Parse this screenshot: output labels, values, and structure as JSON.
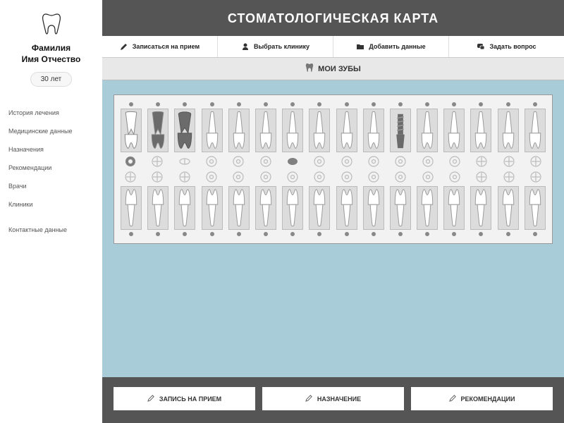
{
  "page_title": "СТОМАТОЛОГИЧЕСКАЯ КАРТА",
  "patient": {
    "name_line1": "Фамилия",
    "name_line2": "Имя Отчество",
    "age": "30 лет"
  },
  "sidebar": {
    "items": [
      {
        "label": "История лечения"
      },
      {
        "label": "Медицинские данные"
      },
      {
        "label": "Назначения"
      },
      {
        "label": "Рекомендации"
      },
      {
        "label": "Врачи"
      },
      {
        "label": "Клиники"
      }
    ],
    "contact_label": "Контактные данные"
  },
  "toolbar": {
    "appointment": "Записаться на прием",
    "clinic": "Выбрать клинику",
    "add_data": "Добавить данные",
    "ask": "Задать вопрос"
  },
  "section_title": "МОИ ЗУБЫ",
  "bottom_buttons": {
    "appointment": "ЗАПИСЬ НА ПРИЕМ",
    "assignment": "НАЗНАЧЕНИЕ",
    "recommendations": "РЕКОМЕНДАЦИИ"
  },
  "colors": {
    "page_bg": "#3a3a3a",
    "main_bg": "#555555",
    "chart_bg": "#a8cdd9",
    "chart_panel": "#f2f2f2",
    "tooth_box": "#dcdcdc",
    "marker": "#888888",
    "tooth_dark_fill": "#6b6b6b",
    "surf_filled": "#808080",
    "surf_outline": "#bbbbbb"
  },
  "chart": {
    "tooth_count": 16,
    "upper_teeth": [
      {
        "state": "root",
        "surf": "donut-filled"
      },
      {
        "state": "root-dark",
        "surf": "cross"
      },
      {
        "state": "molar-dark",
        "surf": "oval"
      },
      {
        "state": "normal",
        "surf": "circle"
      },
      {
        "state": "normal",
        "surf": "circle"
      },
      {
        "state": "normal",
        "surf": "circle"
      },
      {
        "state": "normal",
        "surf": "ellipse-filled"
      },
      {
        "state": "normal",
        "surf": "circle"
      },
      {
        "state": "normal",
        "surf": "circle"
      },
      {
        "state": "normal",
        "surf": "circle"
      },
      {
        "state": "implant",
        "surf": "circle"
      },
      {
        "state": "normal",
        "surf": "circle"
      },
      {
        "state": "normal",
        "surf": "circle"
      },
      {
        "state": "normal",
        "surf": "cross"
      },
      {
        "state": "normal",
        "surf": "cross"
      },
      {
        "state": "normal",
        "surf": "cross"
      }
    ],
    "lower_teeth": [
      {
        "state": "normal",
        "surf": "cross"
      },
      {
        "state": "normal",
        "surf": "cross"
      },
      {
        "state": "normal",
        "surf": "cross"
      },
      {
        "state": "normal",
        "surf": "circle"
      },
      {
        "state": "normal",
        "surf": "circle"
      },
      {
        "state": "normal",
        "surf": "circle"
      },
      {
        "state": "normal",
        "surf": "circle"
      },
      {
        "state": "normal",
        "surf": "circle"
      },
      {
        "state": "normal",
        "surf": "circle"
      },
      {
        "state": "normal",
        "surf": "circle"
      },
      {
        "state": "normal",
        "surf": "circle"
      },
      {
        "state": "normal",
        "surf": "circle"
      },
      {
        "state": "normal",
        "surf": "circle"
      },
      {
        "state": "normal",
        "surf": "cross"
      },
      {
        "state": "normal",
        "surf": "cross"
      },
      {
        "state": "normal",
        "surf": "cross"
      }
    ]
  }
}
